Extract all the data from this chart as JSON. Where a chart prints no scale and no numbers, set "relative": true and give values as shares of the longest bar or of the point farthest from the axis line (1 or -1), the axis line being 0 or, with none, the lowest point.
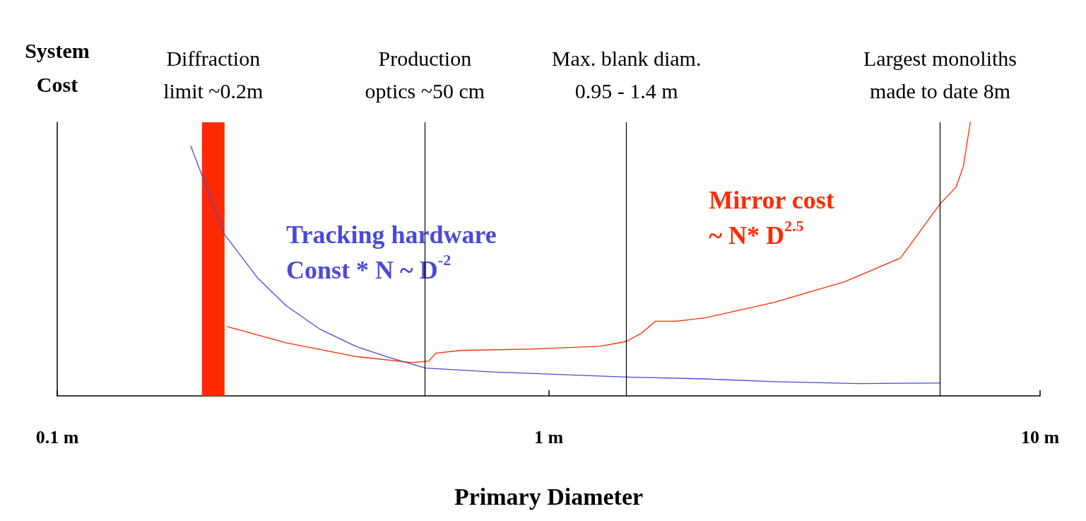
{
  "chart_data": {
    "type": "line",
    "xlabel": "Primary Diameter",
    "ylabel": "System\nCost",
    "relative": true,
    "log": "x",
    "xlim": [
      0.1,
      10
    ],
    "xticks": [
      {
        "value": 0.1,
        "label": "0.1 m"
      },
      {
        "value": 1,
        "label": "1 m"
      },
      {
        "value": 10,
        "label": "10 m"
      }
    ],
    "grid": false,
    "legend": false,
    "marker": "none",
    "line_style": "solid",
    "series": [
      {
        "name": "Tracking hardware\nConst * N ~ D$^{-2}$",
        "color": "#4a4ad8",
        "x": [
          0.187,
          0.219,
          0.256,
          0.292,
          0.343,
          0.405,
          0.476,
          0.561,
          0.778,
          1.44,
          2.08,
          2.88,
          4.27,
          6.26
        ],
        "values": [
          0.913,
          0.59,
          0.43,
          0.33,
          0.243,
          0.181,
          0.139,
          0.102,
          0.087,
          0.069,
          0.062,
          0.052,
          0.045,
          0.047
        ]
      },
      {
        "name": "Mirror cost\n~ N* D$^{2.5}$",
        "color": "#ff2a00",
        "x": [
          0.222,
          0.292,
          0.405,
          0.525,
          0.57,
          0.589,
          0.661,
          0.916,
          1.27,
          1.44,
          1.55,
          1.65,
          1.82,
          2.08,
          2.88,
          4.0,
          5.2,
          6.26,
          6.75,
          6.98,
          7.21
        ],
        "values": [
          0.253,
          0.194,
          0.144,
          0.122,
          0.127,
          0.156,
          0.166,
          0.171,
          0.181,
          0.199,
          0.231,
          0.273,
          0.273,
          0.285,
          0.342,
          0.417,
          0.504,
          0.702,
          0.764,
          0.839,
          1
        ]
      }
    ],
    "ref_lines": [
      {
        "axis": "x",
        "value": 0.56,
        "label": "Production\noptics ~50 cm",
        "color": "#000000"
      },
      {
        "axis": "x",
        "value": 1.44,
        "label": "Max. blank diam.\n0.95 - 1.4 m",
        "color": "#000000"
      },
      {
        "axis": "x",
        "value": 6.26,
        "label": "Largest monoliths\nmade to date 8m",
        "color": "#000000"
      }
    ],
    "bands": [
      {
        "axis": "x",
        "from": 0.197,
        "to": 0.219,
        "label": "Diffraction\nlimit ~0.2m",
        "color": "#ff2a00"
      }
    ]
  }
}
